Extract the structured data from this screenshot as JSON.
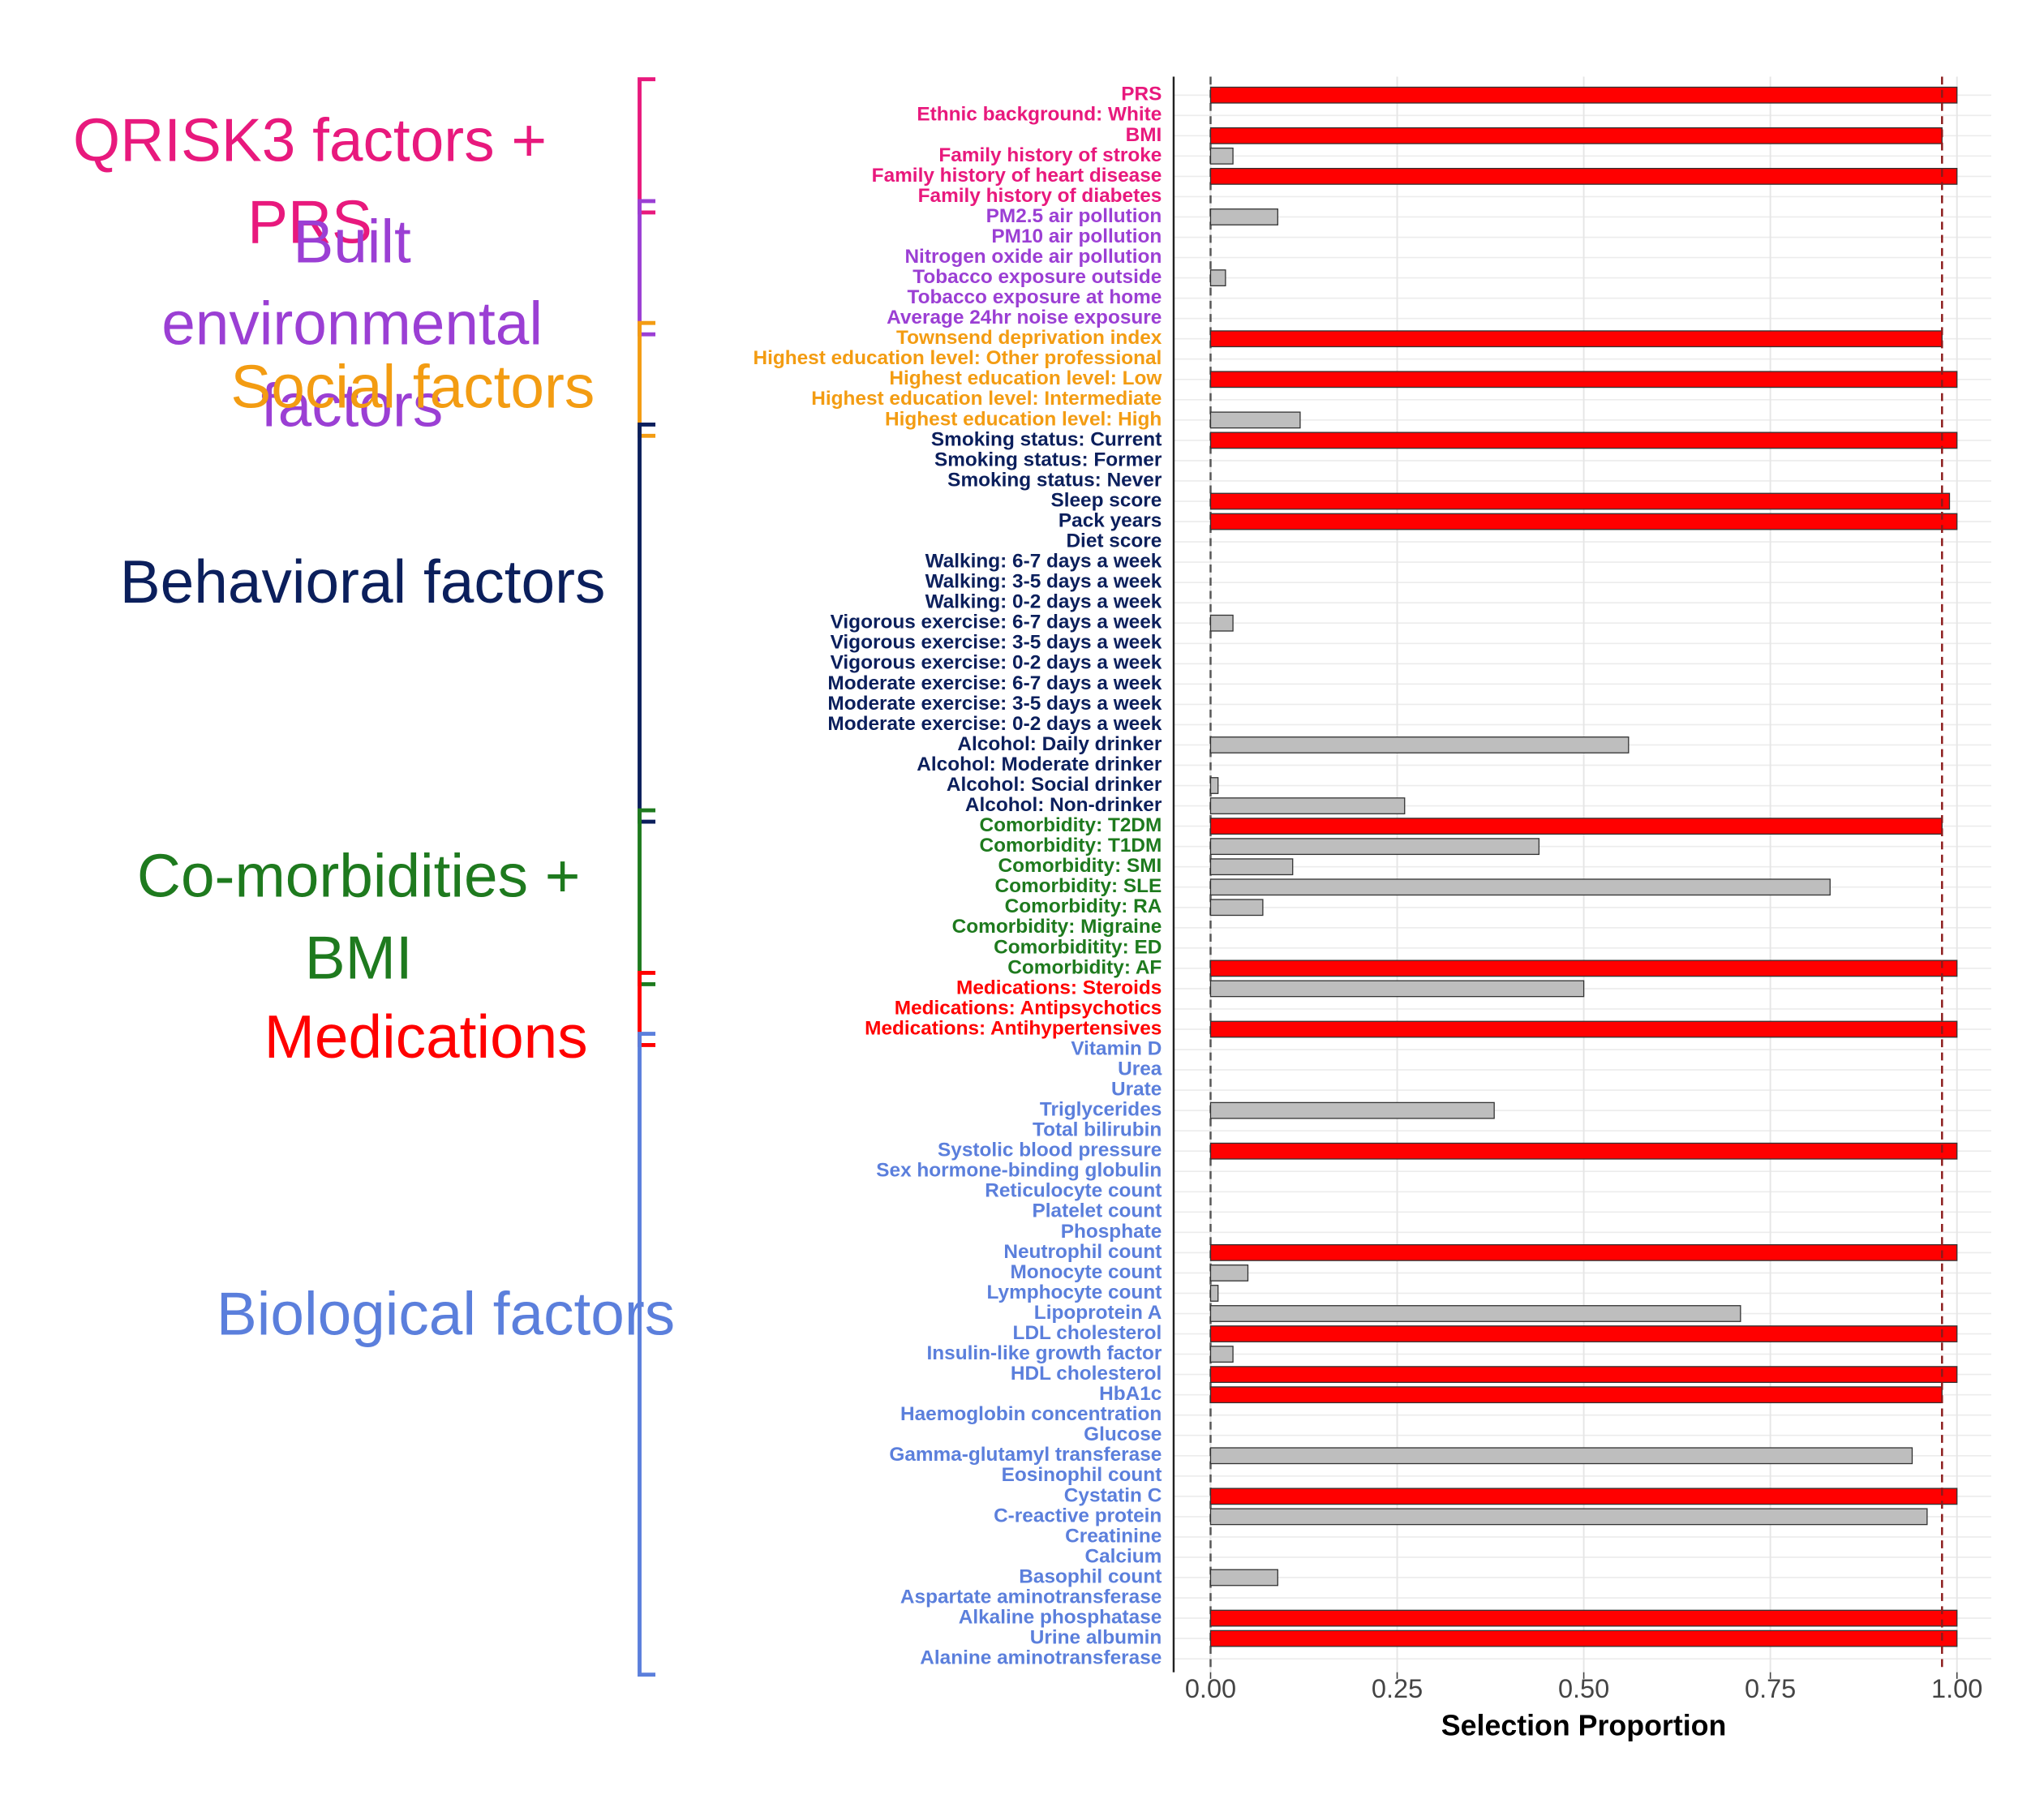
{
  "chart_data": {
    "type": "bar",
    "xlabel": "Selection Proportion",
    "xlim": [
      0,
      1
    ],
    "xticks": [
      {
        "value": 0,
        "label": "0.00"
      },
      {
        "value": 0.25,
        "label": "0.25"
      },
      {
        "value": 0.5,
        "label": "0.50"
      },
      {
        "value": 0.75,
        "label": "0.75"
      },
      {
        "value": 1,
        "label": "1.00"
      }
    ],
    "reference_line": 0.98,
    "grid": true,
    "groups": [
      {
        "name": "QRISK3 factors + PRS",
        "color": "#e8197d",
        "categories": [
          "PRS",
          "Ethnic background: White",
          "BMI",
          "Family history of stroke",
          "Family history of heart disease",
          "Family history of diabetes"
        ],
        "values": [
          1.0,
          0,
          0.98,
          0.03,
          1.0,
          0
        ],
        "bar_colors": [
          "#ff0000",
          "#bebebe",
          "#ff0000",
          "#bebebe",
          "#ff0000",
          "#bebebe"
        ]
      },
      {
        "name": "Built environmental factors",
        "color": "#9b3fd4",
        "categories": [
          "PM2.5 air pollution",
          "PM10 air pollution",
          "Nitrogen oxide air pollution",
          "Tobacco exposure outside",
          "Tobacco exposure at home",
          "Average 24hr noise exposure"
        ],
        "values": [
          0.09,
          0,
          0,
          0.02,
          0,
          0
        ],
        "bar_colors": [
          "#bebebe",
          "#bebebe",
          "#bebebe",
          "#bebebe",
          "#bebebe",
          "#bebebe"
        ]
      },
      {
        "name": "Social factors",
        "color": "#f39c12",
        "categories": [
          "Townsend deprivation index",
          "Highest education level: Other professional",
          "Highest education level: Low",
          "Highest education level: Intermediate",
          "Highest education level: High"
        ],
        "values": [
          0.98,
          0,
          1.0,
          0,
          0.12
        ],
        "bar_colors": [
          "#ff0000",
          "#bebebe",
          "#ff0000",
          "#bebebe",
          "#bebebe"
        ]
      },
      {
        "name": "Behavioral factors",
        "color": "#0b1f5c",
        "categories": [
          "Smoking status: Current",
          "Smoking status: Former",
          "Smoking status: Never",
          "Sleep score",
          "Pack years",
          "Diet score",
          "Walking: 6-7 days a week",
          "Walking: 3-5 days a week",
          "Walking: 0-2 days a week",
          "Vigorous exercise: 6-7 days a week",
          "Vigorous exercise: 3-5 days a week",
          "Vigorous exercise: 0-2 days a week",
          "Moderate exercise: 6-7 days a week",
          "Moderate exercise: 3-5 days a week",
          "Moderate exercise: 0-2 days a week",
          "Alcohol: Daily drinker",
          "Alcohol: Moderate drinker",
          "Alcohol: Social drinker",
          "Alcohol: Non-drinker"
        ],
        "values": [
          1.0,
          0,
          0,
          0.99,
          1.0,
          0,
          0,
          0,
          0,
          0.03,
          0,
          0,
          0,
          0,
          0,
          0.56,
          0,
          0.01,
          0.26
        ],
        "bar_colors": [
          "#ff0000",
          "#bebebe",
          "#bebebe",
          "#ff0000",
          "#ff0000",
          "#bebebe",
          "#bebebe",
          "#bebebe",
          "#bebebe",
          "#bebebe",
          "#bebebe",
          "#bebebe",
          "#bebebe",
          "#bebebe",
          "#bebebe",
          "#bebebe",
          "#bebebe",
          "#bebebe",
          "#bebebe"
        ]
      },
      {
        "name": "Co-morbidities + BMI",
        "color": "#1e7a1e",
        "categories": [
          "Comorbidity: T2DM",
          "Comorbidity: T1DM",
          "Comorbidity: SMI",
          "Comorbidity: SLE",
          "Comorbidity: RA",
          "Comorbidity: Migraine",
          "Comorbiditity: ED",
          "Comorbidity: AF"
        ],
        "values": [
          0.98,
          0.44,
          0.11,
          0.83,
          0.07,
          0,
          0,
          1.0
        ],
        "bar_colors": [
          "#ff0000",
          "#bebebe",
          "#bebebe",
          "#bebebe",
          "#bebebe",
          "#bebebe",
          "#bebebe",
          "#ff0000"
        ]
      },
      {
        "name": "Medications",
        "color": "#ff0000",
        "categories": [
          "Medications: Steroids",
          "Medications: Antipsychotics",
          "Medications: Antihypertensives"
        ],
        "values": [
          0.5,
          0,
          1.0
        ],
        "bar_colors": [
          "#bebebe",
          "#bebebe",
          "#ff0000"
        ]
      },
      {
        "name": "Biological factors",
        "color": "#5b7fdc",
        "categories": [
          "Vitamin D",
          "Urea",
          "Urate",
          "Triglycerides",
          "Total bilirubin",
          "Systolic blood pressure",
          "Sex hormone-binding globulin",
          "Reticulocyte count",
          "Platelet count",
          "Phosphate",
          "Neutrophil count",
          "Monocyte count",
          "Lymphocyte count",
          "Lipoprotein A",
          "LDL cholesterol",
          "Insulin-like growth factor",
          "HDL cholesterol",
          "HbA1c",
          "Haemoglobin concentration",
          "Glucose",
          "Gamma-glutamyl transferase",
          "Eosinophil count",
          "Cystatin C",
          "C-reactive protein",
          "Creatinine",
          "Calcium",
          "Basophil count",
          "Aspartate aminotransferase",
          "Alkaline phosphatase",
          "Urine albumin",
          "Alanine aminotransferase"
        ],
        "values": [
          0,
          0,
          0,
          0.38,
          0,
          1.0,
          0,
          0,
          0,
          0,
          1.0,
          0.05,
          0.01,
          0.71,
          1.0,
          0.03,
          1.0,
          0.98,
          0,
          0,
          0.94,
          0,
          1.0,
          0.96,
          0,
          0,
          0.09,
          0,
          1.0,
          1.0,
          0
        ],
        "bar_colors": [
          "#bebebe",
          "#bebebe",
          "#bebebe",
          "#bebebe",
          "#bebebe",
          "#ff0000",
          "#bebebe",
          "#bebebe",
          "#bebebe",
          "#bebebe",
          "#ff0000",
          "#bebebe",
          "#bebebe",
          "#bebebe",
          "#ff0000",
          "#bebebe",
          "#ff0000",
          "#ff0000",
          "#bebebe",
          "#bebebe",
          "#bebebe",
          "#bebebe",
          "#ff0000",
          "#bebebe",
          "#bebebe",
          "#bebebe",
          "#bebebe",
          "#bebebe",
          "#ff0000",
          "#ff0000",
          "#bebebe"
        ]
      }
    ]
  }
}
